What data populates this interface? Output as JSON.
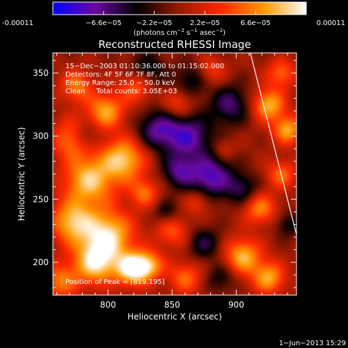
{
  "colorbar": {
    "stops": [
      "#0000ff",
      "#6a0aa0",
      "#000000",
      "#9a1a00",
      "#ff2a00",
      "#ff9a00",
      "#ffffff"
    ],
    "ticks": [
      {
        "value": -0.00011,
        "label": "-0.00011"
      },
      {
        "value": -6.6e-05,
        "label": "−6.6e−05"
      },
      {
        "value": -2.2e-05,
        "label": "−2.2e−05"
      },
      {
        "value": 2.2e-05,
        "label": "2.2e−05"
      },
      {
        "value": 6.6e-05,
        "label": "6.6e−05"
      },
      {
        "value": 0.00011,
        "label": "0.00011"
      }
    ],
    "units_text": "(photons cm",
    "units_sup1": "−2",
    "units_mid": " s",
    "units_sup2": "−1",
    "units_mid2": " asec",
    "units_sup3": "−2",
    "units_close": ")"
  },
  "chart_data": {
    "type": "heatmap",
    "title": "Reconstructed RHESSI Image",
    "xlabel": "Heliocentric X (arcsec)",
    "ylabel": "Heliocentric Y (arcsec)",
    "xlim": [
      757,
      947
    ],
    "ylim": [
      174,
      366
    ],
    "xticks": [
      800,
      850,
      900
    ],
    "yticks": [
      200,
      250,
      300,
      350
    ],
    "value_range": [
      -0.00011,
      0.00011
    ],
    "blobs": [
      {
        "x": 819,
        "y": 195,
        "v": 1.0,
        "s": 9
      },
      {
        "x": 790,
        "y": 200,
        "v": 0.85,
        "s": 12
      },
      {
        "x": 800,
        "y": 222,
        "v": 0.85,
        "s": 14
      },
      {
        "x": 772,
        "y": 232,
        "v": 0.75,
        "s": 12
      },
      {
        "x": 785,
        "y": 265,
        "v": 0.8,
        "s": 14
      },
      {
        "x": 812,
        "y": 282,
        "v": 0.8,
        "s": 12
      },
      {
        "x": 772,
        "y": 298,
        "v": 0.6,
        "s": 11
      },
      {
        "x": 798,
        "y": 320,
        "v": 0.7,
        "s": 10
      },
      {
        "x": 822,
        "y": 340,
        "v": 0.55,
        "s": 9
      },
      {
        "x": 828,
        "y": 255,
        "v": 0.5,
        "s": 8
      },
      {
        "x": 762,
        "y": 185,
        "v": 0.55,
        "s": 10
      },
      {
        "x": 775,
        "y": 340,
        "v": 0.55,
        "s": 9
      },
      {
        "x": 832,
        "y": 198,
        "v": 0.65,
        "s": 8
      },
      {
        "x": 850,
        "y": 225,
        "v": 0.45,
        "s": 9
      },
      {
        "x": 860,
        "y": 188,
        "v": 0.5,
        "s": 9
      },
      {
        "x": 855,
        "y": 325,
        "v": 0.4,
        "s": 8
      },
      {
        "x": 880,
        "y": 352,
        "v": 0.35,
        "s": 8
      },
      {
        "x": 870,
        "y": 248,
        "v": 0.35,
        "s": 7
      },
      {
        "x": 905,
        "y": 205,
        "v": 0.75,
        "s": 10
      },
      {
        "x": 925,
        "y": 188,
        "v": 0.7,
        "s": 9
      },
      {
        "x": 918,
        "y": 243,
        "v": 0.6,
        "s": 9
      },
      {
        "x": 935,
        "y": 270,
        "v": 0.5,
        "s": 8
      },
      {
        "x": 925,
        "y": 325,
        "v": 0.75,
        "s": 9
      },
      {
        "x": 940,
        "y": 305,
        "v": 0.7,
        "s": 8
      },
      {
        "x": 935,
        "y": 350,
        "v": 0.5,
        "s": 8
      },
      {
        "x": 890,
        "y": 290,
        "v": 0.25,
        "s": 6
      },
      {
        "x": 862,
        "y": 300,
        "v": -0.7,
        "s": 13
      },
      {
        "x": 838,
        "y": 305,
        "v": -0.6,
        "s": 11
      },
      {
        "x": 880,
        "y": 268,
        "v": -0.75,
        "s": 12
      },
      {
        "x": 855,
        "y": 272,
        "v": -0.55,
        "s": 9
      },
      {
        "x": 895,
        "y": 325,
        "v": -0.55,
        "s": 11
      },
      {
        "x": 830,
        "y": 352,
        "v": -0.45,
        "s": 10
      },
      {
        "x": 865,
        "y": 345,
        "v": -0.4,
        "s": 9
      },
      {
        "x": 875,
        "y": 215,
        "v": -0.45,
        "s": 9
      },
      {
        "x": 905,
        "y": 258,
        "v": -0.45,
        "s": 9
      },
      {
        "x": 782,
        "y": 300,
        "v": -0.4,
        "s": 8
      },
      {
        "x": 845,
        "y": 240,
        "v": -0.35,
        "s": 7
      },
      {
        "x": 888,
        "y": 188,
        "v": -0.35,
        "s": 8
      },
      {
        "x": 940,
        "y": 230,
        "v": -0.35,
        "s": 7
      }
    ],
    "limb_line": {
      "x": [
        911,
        947
      ],
      "y": [
        366,
        222
      ]
    }
  },
  "annotations": {
    "time_range": "15−Dec−2003 01:10:36.000 to 01:15:02.000",
    "detectors": "Detectors: 4F 5F 6F 7F 8F, Att 0",
    "energy": "Energy Range: 25.0 − 50.0 keV",
    "clean": "Clean     Total counts: 3.05E+03",
    "peak": "Position of Peak = [819,195]"
  },
  "footer": {
    "date": "1−Jun−2013 15:29"
  }
}
